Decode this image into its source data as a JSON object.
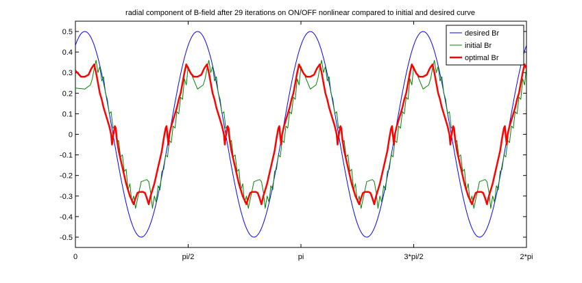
{
  "figure": {
    "background": "#ffffff"
  },
  "chart_data": {
    "type": "line",
    "title": "radial component of B-field after 29 iterations on ON/OFF nonlinear  compared to initial and desired curve",
    "xlabel": "",
    "ylabel": "",
    "xlim": [
      0,
      6.2832
    ],
    "ylim": [
      -0.55,
      0.55
    ],
    "xticks": [
      {
        "value": 0,
        "label": "0"
      },
      {
        "value": 1.5708,
        "label": "pi/2"
      },
      {
        "value": 3.1416,
        "label": "pi"
      },
      {
        "value": 4.7124,
        "label": "3*pi/2"
      },
      {
        "value": 6.2832,
        "label": "2*pi"
      }
    ],
    "yticks": [
      {
        "value": -0.5,
        "label": "-0.5"
      },
      {
        "value": -0.4,
        "label": "-0.4"
      },
      {
        "value": -0.3,
        "label": "-0.3"
      },
      {
        "value": -0.2,
        "label": "-0.2"
      },
      {
        "value": -0.1,
        "label": "-0.1"
      },
      {
        "value": 0,
        "label": "0"
      },
      {
        "value": 0.1,
        "label": "0.1"
      },
      {
        "value": 0.2,
        "label": "0.2"
      },
      {
        "value": 0.3,
        "label": "0.3"
      },
      {
        "value": 0.4,
        "label": "0.4"
      },
      {
        "value": 0.5,
        "label": "0.5"
      }
    ],
    "grid": false,
    "legend_position": "top-right",
    "series": [
      {
        "name": "desired Br",
        "color": "#0000ff",
        "x": [
          0,
          0.1309,
          0.3927,
          0.6545,
          0.9163,
          1.1781,
          1.4399,
          1.7017,
          1.9635,
          2.2253,
          2.4871,
          2.7489,
          3.0107,
          3.2725,
          3.5343,
          3.7961,
          4.0579,
          4.3197,
          4.5815,
          4.8433,
          5.1051,
          5.3669,
          5.6287,
          5.8905,
          6.1523,
          6.2832
        ],
        "y": [
          0.433,
          0.5,
          0.25,
          -0.25,
          -0.5,
          -0.25,
          0.25,
          0.5,
          0.25,
          -0.25,
          -0.5,
          -0.25,
          0.25,
          0.5,
          0.25,
          -0.25,
          -0.5,
          -0.25,
          0.25,
          0.5,
          0.25,
          -0.25,
          -0.5,
          -0.25,
          0.25,
          0.433
        ]
      },
      {
        "name": "initial Br",
        "color": "#008000",
        "x": [
          0,
          0.1309,
          0.2094,
          0.2356,
          0.2618,
          0.288,
          0.3142,
          0.3404,
          0.3665,
          0.3927,
          0.4189,
          0.4451,
          0.4712,
          0.4974,
          0.5236,
          0.5498,
          0.576,
          0.6021,
          0.6283,
          0.6545,
          0.6807,
          0.7069,
          0.733,
          0.7592,
          0.7854,
          0.8116,
          0.8378,
          0.9163,
          0.9948,
          1.021,
          1.0472,
          1.0734,
          1.0996,
          1.1257,
          1.1519,
          1.1781,
          1.2043,
          1.2305,
          1.2566,
          1.2828,
          1.309,
          1.3352,
          1.3614,
          1.3875,
          1.4137,
          1.4399,
          1.4661,
          1.4923,
          1.5184,
          1.5446,
          1.5708
        ],
        "y": [
          0.225,
          0.22,
          0.24,
          0.27,
          0.32,
          0.36,
          0.3,
          0.33,
          0.26,
          0.28,
          0.2,
          0.17,
          0.1,
          0.11,
          0.03,
          0.04,
          -0.04,
          -0.03,
          -0.11,
          -0.1,
          -0.18,
          -0.17,
          -0.27,
          -0.24,
          -0.33,
          -0.3,
          -0.36,
          -0.23,
          -0.22,
          -0.23,
          -0.28,
          -0.36,
          -0.3,
          -0.33,
          -0.25,
          -0.27,
          -0.18,
          -0.17,
          -0.1,
          -0.11,
          -0.03,
          -0.04,
          0.04,
          0.03,
          0.11,
          0.1,
          0.18,
          0.17,
          0.27,
          0.24,
          0.33
        ]
      },
      {
        "name": "optimal Br",
        "color": "#ff0000",
        "x": [
          0,
          0.0393,
          0.0785,
          0.1309,
          0.1833,
          0.2225,
          0.2618,
          0.288,
          0.3142,
          0.3404,
          0.3665,
          0.3927,
          0.4189,
          0.4451,
          0.4712,
          0.4974,
          0.5105,
          0.5236,
          0.5498,
          0.5629,
          0.576,
          0.6021,
          0.6283,
          0.6545,
          0.6807,
          0.7069,
          0.733,
          0.7592,
          0.7854,
          0.8116,
          0.8378,
          0.8639,
          0.8901,
          0.9163,
          0.9425,
          0.9687,
          0.9948,
          1.021,
          1.0472,
          1.0734,
          1.0996,
          1.1257,
          1.1519,
          1.1781,
          1.2043,
          1.2305,
          1.2566,
          1.2697,
          1.2828,
          1.2959,
          1.309,
          1.3352,
          1.3614,
          1.3875,
          1.4137,
          1.4399,
          1.4661,
          1.4923,
          1.5184,
          1.5446,
          1.5708
        ],
        "y": [
          0.31,
          0.295,
          0.28,
          0.28,
          0.29,
          0.32,
          0.34,
          0.3,
          0.25,
          0.2,
          0.17,
          0.13,
          0.1,
          0.07,
          0.04,
          0.0,
          -0.05,
          -0.01,
          0.04,
          0.03,
          -0.02,
          -0.08,
          -0.12,
          -0.16,
          -0.2,
          -0.24,
          -0.27,
          -0.3,
          -0.32,
          -0.34,
          -0.31,
          -0.285,
          -0.28,
          -0.28,
          -0.28,
          -0.285,
          -0.31,
          -0.34,
          -0.3,
          -0.27,
          -0.24,
          -0.2,
          -0.16,
          -0.12,
          -0.08,
          -0.02,
          0.03,
          0.04,
          -0.01,
          -0.05,
          0.0,
          0.04,
          0.07,
          0.1,
          0.13,
          0.17,
          0.2,
          0.25,
          0.3,
          0.34,
          0.32
        ]
      }
    ]
  }
}
